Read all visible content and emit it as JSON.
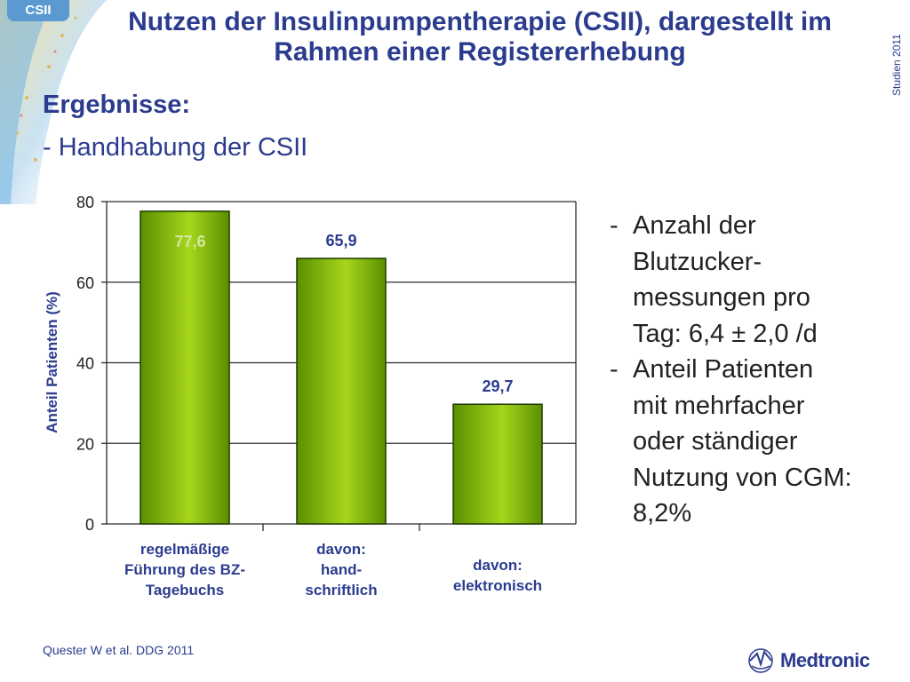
{
  "header": {
    "tag": "CSII",
    "title_line1": "Nutzen der Insulinpumpentherapie (CSII), dargestellt im",
    "title_line2": "Rahmen einer Registererhebung",
    "side_label": "Studien 2011"
  },
  "section": {
    "heading": "Ergebnisse:",
    "subheading": "- Handhabung der CSII"
  },
  "chart_data": {
    "type": "bar",
    "categories": [
      [
        "regelmäßige",
        "Führung des BZ-",
        "Tagebuchs"
      ],
      [
        "davon:",
        "hand-",
        "schriftlich"
      ],
      [
        "davon:",
        "elektronisch"
      ]
    ],
    "values": [
      77.6,
      65.9,
      29.7
    ],
    "data_labels": [
      "77,6",
      "65,9",
      "29,7"
    ],
    "ylabel": "Anteil Patienten (%)",
    "ylim": [
      0,
      80
    ],
    "yticks": [
      0,
      20,
      40,
      60,
      80
    ],
    "grid": true,
    "colors": {
      "bar": "#5a8f00",
      "bar_highlight": "#a6d61c",
      "grid": "#2b2b2b",
      "category_text": "#2b3c8f",
      "label_first": "#cfe8a0",
      "label_other": "#2b3c8f"
    }
  },
  "bullets": [
    {
      "dash": "-",
      "lines": [
        "Anzahl der",
        "Blutzucker-",
        "messungen pro",
        "Tag: 6,4 ± 2,0 /d"
      ]
    },
    {
      "dash": "-",
      "lines": [
        "Anteil Patienten",
        "mit mehrfacher",
        "oder ständiger",
        "Nutzung von CGM:",
        "8,2%"
      ]
    }
  ],
  "footer": {
    "citation": "Quester W et al. DDG 2011",
    "logo_text": "Medtronic",
    "logo_icon": "medtronic-logo-icon"
  }
}
